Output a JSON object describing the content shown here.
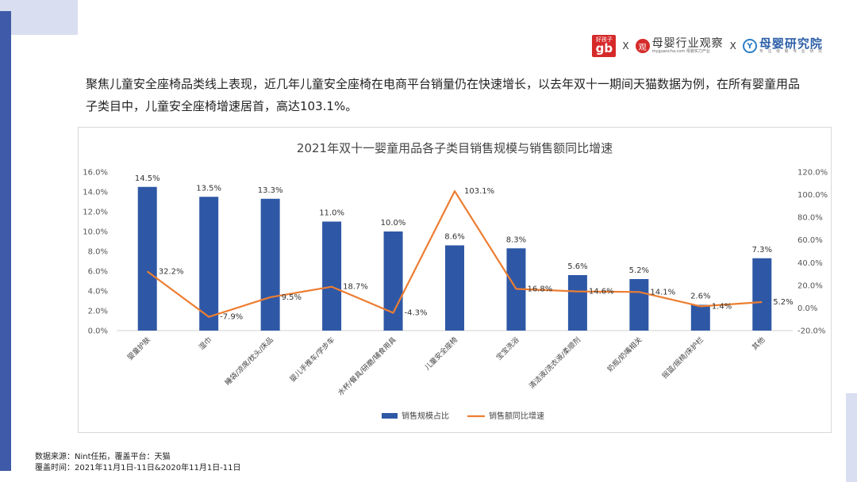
{
  "intro": "聚焦儿童安全座椅品类线上表现，近几年儿童安全座椅在电商平台销量仍在快速增长，以去年双十一期间天猫数据为例，在所有婴童用品子类目中，儿童安全座椅增速居首，高达103.1%。",
  "logos": {
    "gb_small": "好孩子",
    "gb_big": "gb",
    "separator": "X",
    "myguancha_mark": "观",
    "myguancha_name": "母婴行业观察",
    "myguancha_url": "myguancha.com 母婴实力产业",
    "yjy_mark": "Y",
    "yjy_name": "母婴研究院",
    "yjy_slogan": "专 注 母 婴 专 业 研 究"
  },
  "footer": {
    "source": "数据来源：Nint任拓，覆盖平台：天猫",
    "period": "覆盖时间：2021年11月1日-11日&2020年11月1日-11日"
  },
  "colors": {
    "bar": "#2e58a6",
    "line": "#ed7d31",
    "left_bar": "#3f5aa8",
    "deco": "#d9def0"
  },
  "chart_data": {
    "type": "bar",
    "title": "2021年双十一婴童用品各子类目销售规模与销售额同比增速",
    "categories": [
      "婴童护肤",
      "湿巾",
      "睡袋/凉席/枕头/床品",
      "婴儿手推车/学步车",
      "水杯/餐具/研磨/辅食用具",
      "儿童安全座椅",
      "宝宝洗浴",
      "清洁液/洗衣液/柔顺剂",
      "奶瓶/奶嘴相关",
      "摇篮/摇椅/床护栏",
      "其他"
    ],
    "series": [
      {
        "name": "销售规模占比",
        "axis": "left",
        "type": "bar",
        "values": [
          14.5,
          13.5,
          13.3,
          11.0,
          10.0,
          8.6,
          8.3,
          5.6,
          5.2,
          2.6,
          7.3
        ],
        "labels": [
          "14.5%",
          "13.5%",
          "13.3%",
          "11.0%",
          "10.0%",
          "8.6%",
          "8.3%",
          "5.6%",
          "5.2%",
          "2.6%",
          "7.3%"
        ]
      },
      {
        "name": "销售额同比增速",
        "axis": "right",
        "type": "line",
        "values": [
          32.2,
          -7.9,
          9.5,
          18.7,
          -4.3,
          103.1,
          16.8,
          14.6,
          14.1,
          1.4,
          5.2
        ],
        "labels": [
          "32.2%",
          "-7.9%",
          "9.5%",
          "18.7%",
          "-4.3%",
          "103.1%",
          "16.8%",
          "14.6%",
          "14.1%",
          "1.4%",
          "5.2%"
        ]
      }
    ],
    "ylim_left": [
      0,
      16
    ],
    "yticks_left": [
      "0.0%",
      "2.0%",
      "4.0%",
      "6.0%",
      "8.0%",
      "10.0%",
      "12.0%",
      "14.0%",
      "16.0%"
    ],
    "ylim_right": [
      -20,
      120
    ],
    "yticks_right": [
      "-20.0%",
      "0.0%",
      "20.0%",
      "40.0%",
      "60.0%",
      "80.0%",
      "100.0%",
      "120.0%"
    ],
    "legend": "bottom",
    "grid": false
  }
}
